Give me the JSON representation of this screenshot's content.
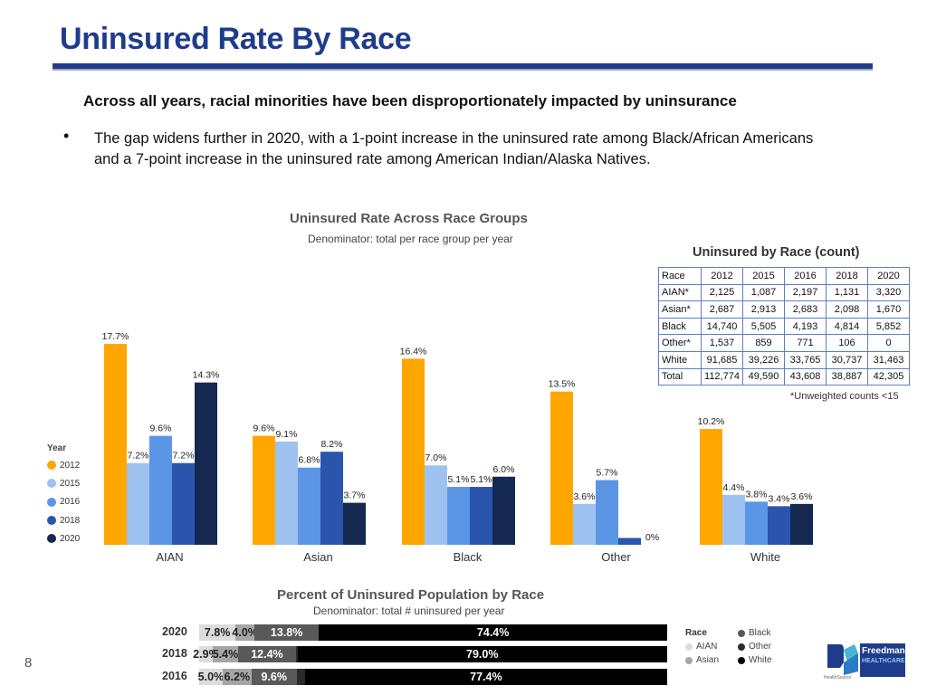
{
  "title": "Uninsured Rate By Race",
  "headline": "Across all years, racial minorities have been disproportionately impacted by uninsurance",
  "bullet": "The gap widens further in 2020, with a 1-point increase in the uninsured rate among Black/African Americans and a 7-point increase in the uninsured rate among American Indian/Alaska Natives.",
  "page_number": "8",
  "colors": {
    "2012": "#ffa600",
    "2015": "#9ec2f0",
    "2016": "#5b95e6",
    "2018": "#2b55ad",
    "2020": "#15284f",
    "title_blue": "#1f3c8c"
  },
  "chart_data": [
    {
      "type": "bar",
      "title": "Uninsured Rate Across Race Groups",
      "subtitle": "Denominator: total per race group per year",
      "legend_title": "Year",
      "legend_position": "left",
      "categories": [
        "AIAN",
        "Asian",
        "Black",
        "Other",
        "White"
      ],
      "series": [
        {
          "name": "2012",
          "values": [
            17.7,
            9.6,
            16.4,
            13.5,
            10.2
          ]
        },
        {
          "name": "2015",
          "values": [
            7.2,
            9.1,
            7.0,
            3.6,
            4.4
          ]
        },
        {
          "name": "2016",
          "values": [
            9.6,
            6.8,
            5.1,
            5.7,
            3.8
          ]
        },
        {
          "name": "2018",
          "values": [
            7.2,
            8.2,
            5.1,
            0.6,
            3.4
          ]
        },
        {
          "name": "2020",
          "values": [
            14.3,
            3.7,
            6.0,
            0,
            3.6
          ]
        }
      ],
      "value_labels": [
        [
          "17.7%",
          "7.2%",
          "9.6%",
          "7.2%",
          "14.3%"
        ],
        [
          "9.6%",
          "9.1%",
          "6.8%",
          "8.2%",
          "3.7%"
        ],
        [
          "16.4%",
          "7.0%",
          "5.1%",
          "5.1%",
          "6.0%"
        ],
        [
          "13.5%",
          "3.6%",
          "5.7%",
          "",
          "0%"
        ],
        [
          "10.2%",
          "4.4%",
          "3.8%",
          "3.4%",
          "3.6%"
        ]
      ],
      "ylim": [
        0,
        19
      ],
      "grid": false,
      "unit": "%"
    },
    {
      "type": "table",
      "title": "Uninsured by Race (count)",
      "headers": [
        "Race",
        "2012",
        "2015",
        "2016",
        "2018",
        "2020"
      ],
      "rows": [
        [
          "AIAN*",
          "2,125",
          "1,087",
          "2,197",
          "1,131",
          "3,320"
        ],
        [
          "Asian*",
          "2,687",
          "2,913",
          "2,683",
          "2,098",
          "1,670"
        ],
        [
          "Black",
          "14,740",
          "5,505",
          "4,193",
          "4,814",
          "5,852"
        ],
        [
          "Other*",
          "1,537",
          "859",
          "771",
          "106",
          "0"
        ],
        [
          "White",
          "91,685",
          "39,226",
          "33,765",
          "30,737",
          "31,463"
        ],
        [
          "Total",
          "112,774",
          "49,590",
          "43,608",
          "38,887",
          "42,305"
        ]
      ],
      "note": "*Unweighted counts <15"
    },
    {
      "type": "bar",
      "orientation": "horizontal-stacked",
      "title": "Percent of Uninsured Population by Race",
      "subtitle": "Denominator: total # uninsured per year",
      "legend_title": "Race",
      "legend": [
        "Black",
        "AIAN",
        "Other",
        "Asian",
        "White"
      ],
      "categories": [
        "2020",
        "2018",
        "2016"
      ],
      "series": [
        {
          "name": "AIAN",
          "values": [
            7.8,
            2.9,
            5.0
          ],
          "labels": [
            "7.8%",
            "2.9%",
            "5.0%"
          ]
        },
        {
          "name": "Asian",
          "values": [
            4.0,
            5.4,
            6.2
          ],
          "labels": [
            "4.0%",
            "5.4%",
            "6.2%"
          ]
        },
        {
          "name": "Black",
          "values": [
            13.8,
            12.4,
            9.6
          ],
          "labels": [
            "13.8%",
            "12.4%",
            "9.6%"
          ]
        },
        {
          "name": "Other",
          "values": [
            0,
            0.3,
            1.8
          ],
          "labels": [
            "",
            "",
            ""
          ]
        },
        {
          "name": "White",
          "values": [
            74.4,
            79.0,
            77.4
          ],
          "labels": [
            "74.4%",
            "79.0%",
            "77.4%"
          ]
        }
      ],
      "xlim": [
        0,
        100
      ]
    }
  ],
  "logo": {
    "name": "Freedman",
    "sub": "HEALTHCARE",
    "tag": "HealthSource"
  }
}
